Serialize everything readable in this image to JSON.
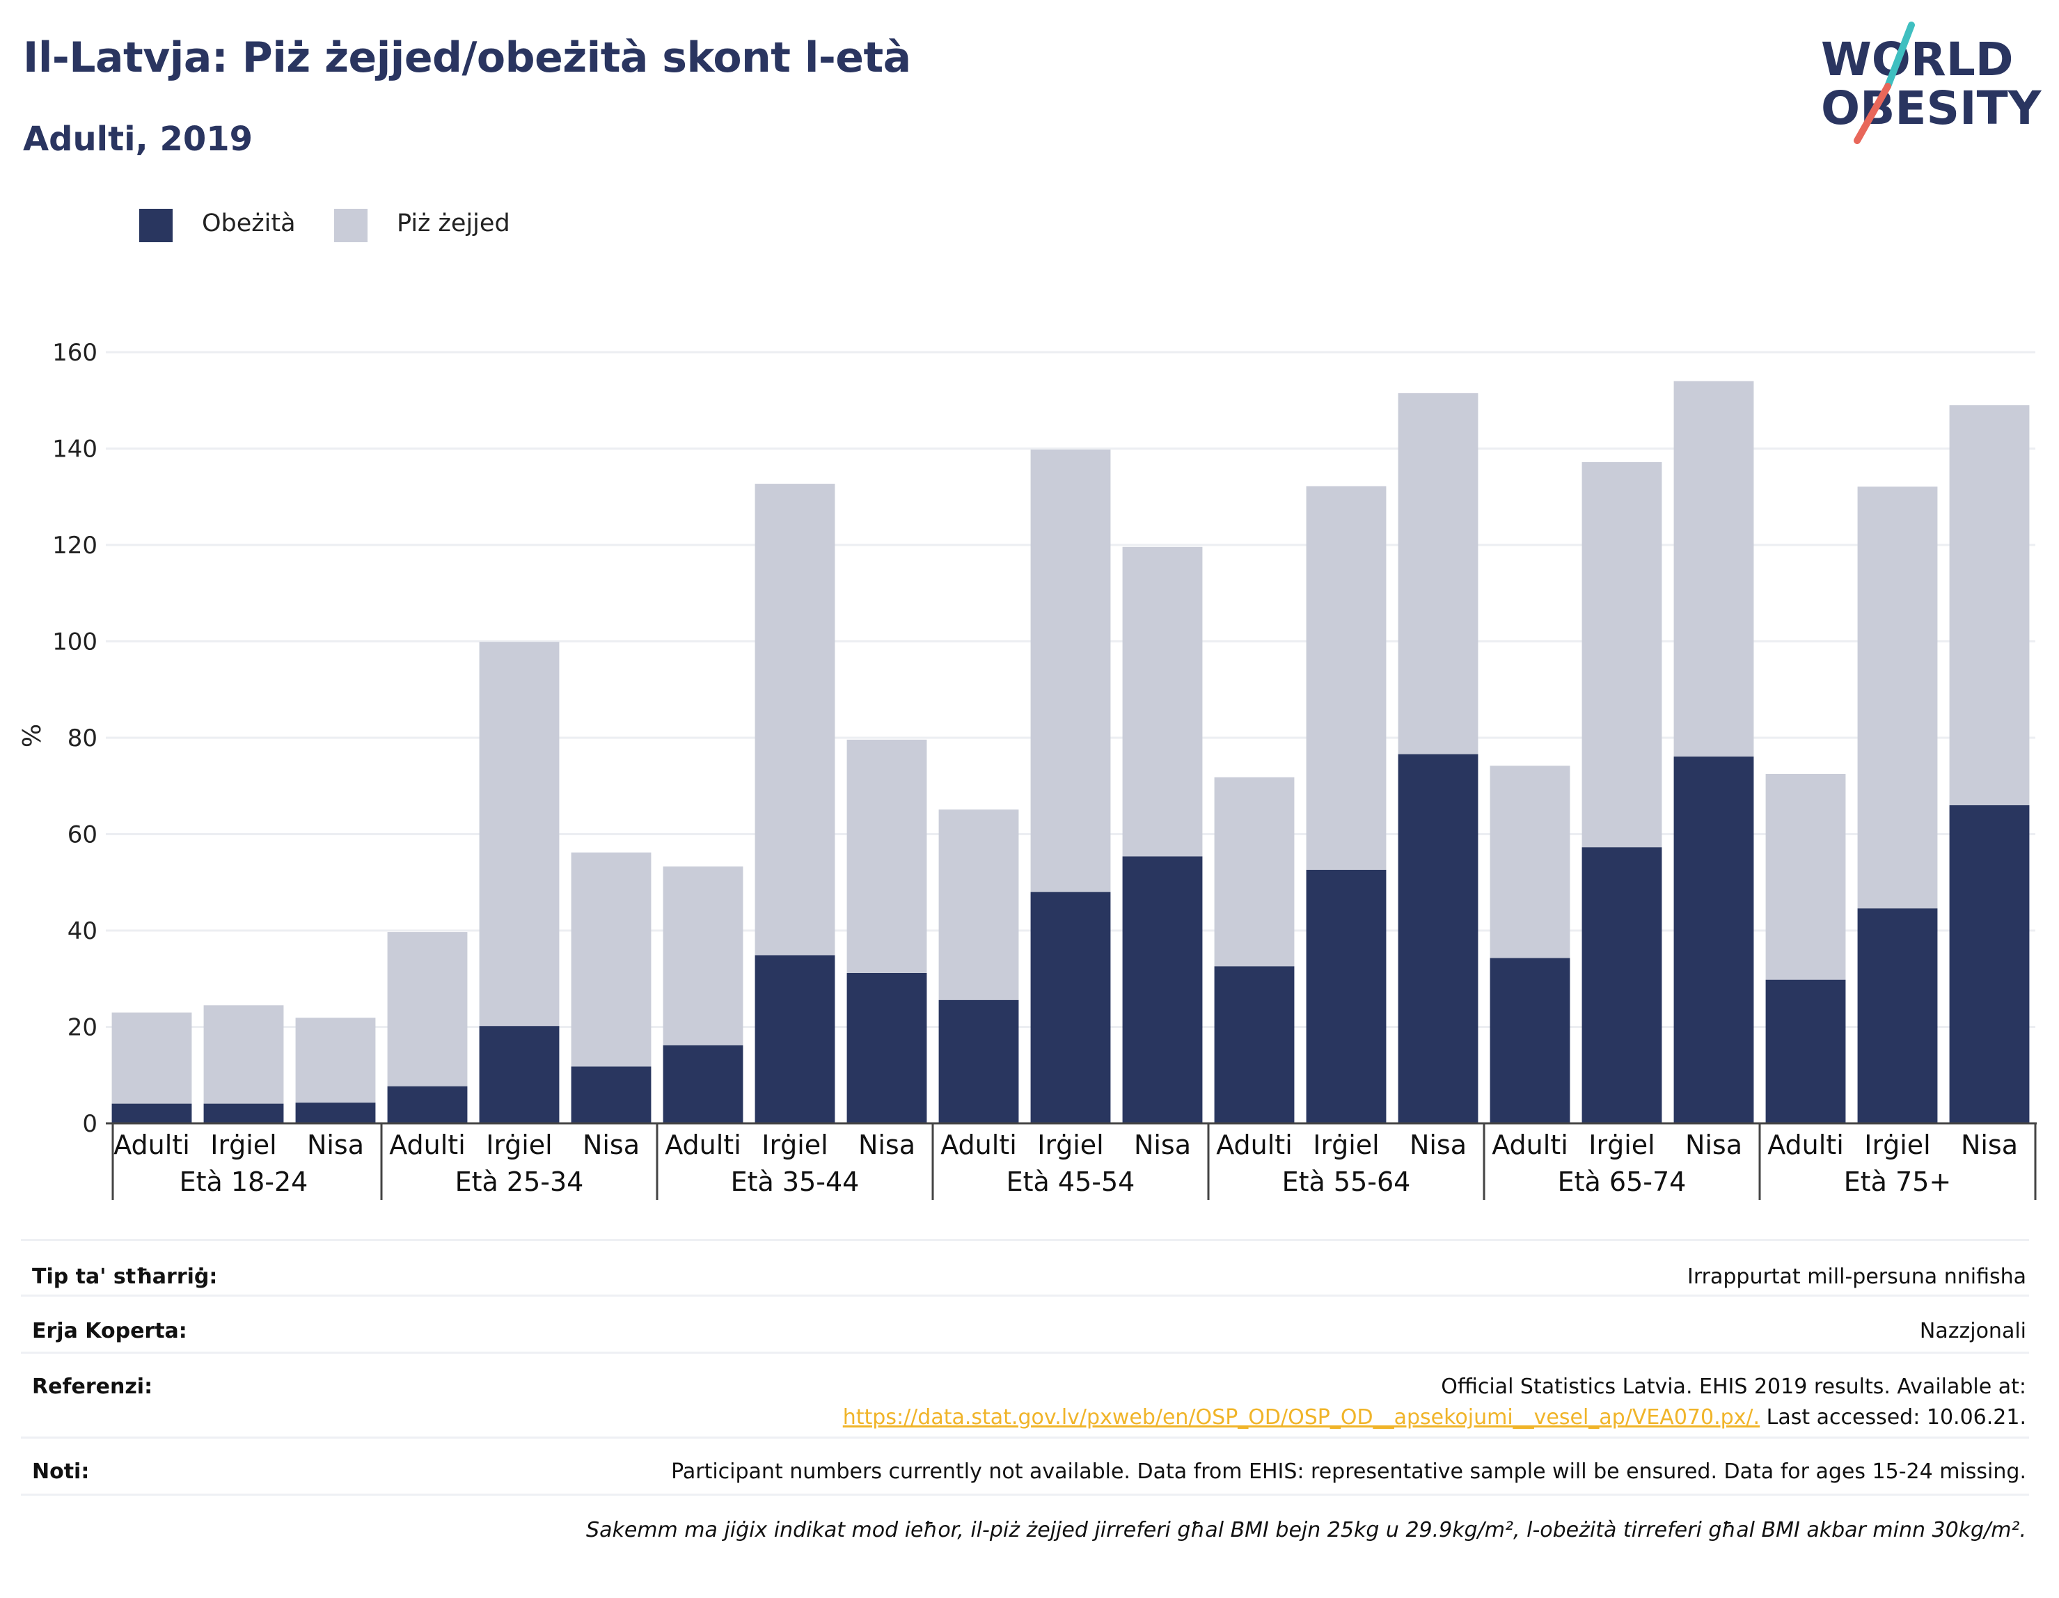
{
  "header": {
    "title": "Il-Latvja: Piż żejjed/obeżità skont l-età",
    "subtitle": "Adulti, 2019"
  },
  "logo": {
    "line1": "WORLD",
    "line2": "OBESITY",
    "colors": {
      "text": "#2a3560",
      "slash_top": "#3fbfc0",
      "slash_bottom": "#e8675a"
    }
  },
  "legend": {
    "items": [
      {
        "label": "Obeżità",
        "color": "#29365f"
      },
      {
        "label": "Piż żejjed",
        "color": "#c9ccd8"
      }
    ]
  },
  "chart_data": {
    "type": "bar",
    "stacked": true,
    "ylabel": "%",
    "ylim": [
      0,
      160
    ],
    "yticks": [
      0,
      20,
      40,
      60,
      80,
      100,
      120,
      140,
      160
    ],
    "grid": true,
    "legend_position": "top-left",
    "groups": [
      {
        "label": "Età 18-24",
        "categories": [
          "Adulti",
          "Irġiel",
          "Nisa"
        ]
      },
      {
        "label": "Età 25-34",
        "categories": [
          "Adulti",
          "Irġiel",
          "Nisa"
        ]
      },
      {
        "label": "Età 35-44",
        "categories": [
          "Adulti",
          "Irġiel",
          "Nisa"
        ]
      },
      {
        "label": "Età 45-54",
        "categories": [
          "Adulti",
          "Irġiel",
          "Nisa"
        ]
      },
      {
        "label": "Età 55-64",
        "categories": [
          "Adulti",
          "Irġiel",
          "Nisa"
        ]
      },
      {
        "label": "Età 65-74",
        "categories": [
          "Adulti",
          "Irġiel",
          "Nisa"
        ]
      },
      {
        "label": "Età 75+",
        "categories": [
          "Adulti",
          "Irġiel",
          "Nisa"
        ]
      }
    ],
    "series": [
      {
        "name": "Obeżità",
        "color": "#29365f",
        "values": [
          4.1,
          4.1,
          4.3,
          7.7,
          20.2,
          11.8,
          16.2,
          34.9,
          31.2,
          25.6,
          48.0,
          55.4,
          32.6,
          52.6,
          76.6,
          34.3,
          57.3,
          76.1,
          29.8,
          44.6,
          66.0
        ]
      },
      {
        "name": "Piż żejjed",
        "color": "#c9ccd8",
        "values": [
          18.9,
          20.4,
          17.6,
          32.0,
          79.7,
          44.4,
          37.1,
          97.8,
          48.4,
          39.5,
          91.8,
          64.2,
          39.2,
          79.6,
          74.9,
          39.9,
          79.9,
          77.9,
          42.7,
          87.5,
          83.0
        ]
      }
    ]
  },
  "meta": {
    "rows": [
      {
        "key": "Tip ta' stħarriġ:",
        "value": "Irrappurtat mill-persuna nnifisha"
      },
      {
        "key": "Erja Koperta:",
        "value": "Nazzjonali"
      },
      {
        "key": "Referenzi:",
        "value_line1": "Official Statistics Latvia. EHIS 2019 results. Available at:",
        "value_link": "https://data.stat.gov.lv/pxweb/en/OSP_OD/OSP_OD__apsekojumi__vesel_ap/VEA070.px/.",
        "value_after": " Last accessed: 10.06.21.",
        "link_color": "#f0b429"
      },
      {
        "key": "Noti:",
        "value": "Participant numbers currently not available. Data from EHIS: representative sample will be ensured. Data for ages 15-24 missing."
      }
    ],
    "footnote": "Sakemm ma jiġix indikat mod ieħor, il-piż żejjed jirreferi għal BMI bejn 25kg u 29.9kg/m², l-obeżità tirreferi għal BMI akbar minn 30kg/m²."
  }
}
